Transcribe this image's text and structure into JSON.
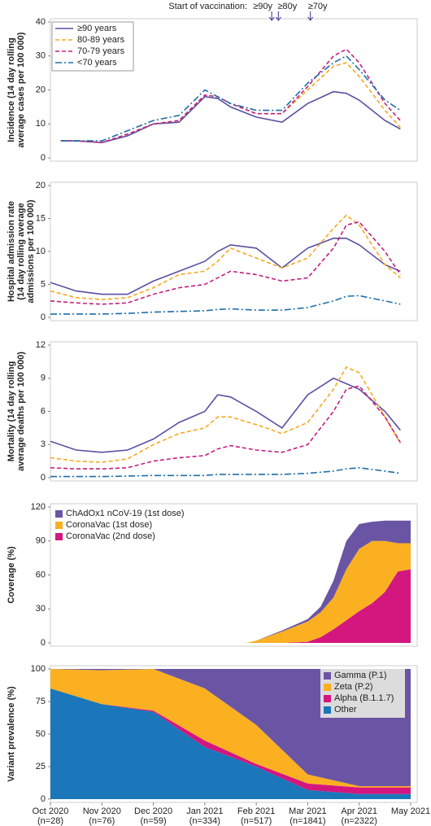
{
  "chart_data": [
    {
      "type": "line",
      "annotations": {
        "text": "Start of vaccination:",
        "markers": [
          {
            "label": "≥90y",
            "x": 4.3
          },
          {
            "label": "≥80y",
            "x": 4.43
          },
          {
            "label": "≥70y",
            "x": 5.05
          }
        ]
      },
      "ylabel": [
        "Incidence (14 day rolling",
        "average cases per 100 000)"
      ],
      "xlim": [
        0,
        7
      ],
      "ylim": [
        0,
        40
      ],
      "yticks": [
        0,
        10,
        20,
        30,
        40
      ],
      "legend": "upper left",
      "x": [
        0.2,
        0.5,
        1,
        1.5,
        2,
        2.5,
        3,
        3.25,
        3.5,
        4,
        4.5,
        5,
        5.5,
        5.75,
        6,
        6.5,
        6.8
      ],
      "series": [
        {
          "name": "≥90 years",
          "color": "#5a4fa2",
          "style": "solid",
          "values": [
            5,
            5,
            4.5,
            6.5,
            10,
            10.5,
            18,
            17.5,
            15,
            12,
            10.5,
            16,
            19.5,
            19,
            17,
            11,
            8.5
          ]
        },
        {
          "name": "80-89 years",
          "color": "#f7a823",
          "style": "dashed",
          "values": [
            5,
            5,
            4.5,
            7,
            10,
            11,
            18.5,
            18,
            16,
            13,
            13,
            20,
            27,
            28,
            24,
            14,
            9
          ]
        },
        {
          "name": "70-79 years",
          "color": "#c41e7f",
          "style": "dashed",
          "values": [
            5,
            5,
            4.5,
            7,
            10,
            11,
            18.5,
            18,
            16,
            13,
            13,
            21,
            30,
            32,
            28,
            16,
            11
          ]
        },
        {
          "name": "<70 years",
          "color": "#1f6ea8",
          "style": "dashdot",
          "values": [
            5,
            5,
            5,
            8,
            11,
            12.5,
            20,
            18,
            16,
            14,
            14,
            22,
            28,
            30,
            26,
            17,
            14
          ]
        }
      ]
    },
    {
      "type": "line",
      "ylabel": [
        "Hospital admission rate",
        "(14 day rolling average",
        "admissions per 100 000)"
      ],
      "xlim": [
        0,
        7
      ],
      "ylim": [
        0,
        20
      ],
      "yticks": [
        0,
        5,
        10,
        15,
        20
      ],
      "x": [
        0,
        0.5,
        1,
        1.5,
        2,
        2.5,
        3,
        3.25,
        3.5,
        4,
        4.5,
        5,
        5.5,
        5.75,
        6,
        6.5,
        6.8
      ],
      "series": [
        {
          "name": "≥90 years",
          "color": "#5a4fa2",
          "style": "solid",
          "values": [
            5.3,
            4,
            3.5,
            3.5,
            5.5,
            7,
            8.5,
            10,
            11,
            10.5,
            7.5,
            10.5,
            12,
            12,
            11,
            8,
            7
          ]
        },
        {
          "name": "80-89 years",
          "color": "#f7a823",
          "style": "dashed",
          "values": [
            4,
            3,
            2.7,
            3,
            4.5,
            6.5,
            7,
            8.5,
            10.5,
            9,
            7.5,
            9,
            13.5,
            15.5,
            14,
            8,
            6
          ]
        },
        {
          "name": "70-79 years",
          "color": "#c41e7f",
          "style": "dashed",
          "values": [
            2.5,
            2.2,
            2,
            2.2,
            3.5,
            4.5,
            5,
            6,
            7,
            6.5,
            5.5,
            6,
            10.5,
            14,
            14.5,
            10,
            6.5
          ]
        },
        {
          "name": "<70 years",
          "color": "#1f6ea8",
          "style": "dashdot",
          "values": [
            0.5,
            0.5,
            0.5,
            0.6,
            0.8,
            0.9,
            1,
            1.2,
            1.3,
            1.1,
            1.1,
            1.5,
            2.5,
            3.2,
            3.3,
            2.5,
            2
          ]
        }
      ]
    },
    {
      "type": "line",
      "ylabel": [
        "Mortality (14 day rolling",
        "average deaths per 100 000)"
      ],
      "xlim": [
        0,
        7
      ],
      "ylim": [
        0,
        12
      ],
      "yticks": [
        0,
        3,
        6,
        9,
        12
      ],
      "x": [
        0,
        0.5,
        1,
        1.5,
        2,
        2.5,
        3,
        3.25,
        3.5,
        4,
        4.5,
        5,
        5.5,
        5.75,
        6,
        6.5,
        6.8
      ],
      "series": [
        {
          "name": "≥90 years",
          "color": "#5a4fa2",
          "style": "solid",
          "values": [
            3.3,
            2.5,
            2.3,
            2.5,
            3.5,
            5,
            6,
            7.5,
            7.3,
            6,
            4.5,
            7.5,
            9,
            8.5,
            8,
            6,
            4.3
          ]
        },
        {
          "name": "80-89 years",
          "color": "#f7a823",
          "style": "dashed",
          "values": [
            1.8,
            1.5,
            1.4,
            1.7,
            3,
            4,
            4.5,
            5.5,
            5.5,
            4.8,
            4,
            5,
            8,
            10,
            9.5,
            5.5,
            3.1
          ]
        },
        {
          "name": "70-79 years",
          "color": "#c41e7f",
          "style": "dashed",
          "values": [
            0.9,
            0.8,
            0.8,
            0.9,
            1.5,
            1.8,
            2,
            2.6,
            2.9,
            2.5,
            2.3,
            3,
            6,
            8,
            8.3,
            5.5,
            3.2
          ]
        },
        {
          "name": "<70 years",
          "color": "#1f6ea8",
          "style": "dashdot",
          "values": [
            0.1,
            0.1,
            0.1,
            0.15,
            0.2,
            0.2,
            0.2,
            0.3,
            0.3,
            0.3,
            0.3,
            0.4,
            0.6,
            0.8,
            0.9,
            0.6,
            0.4
          ]
        }
      ]
    },
    {
      "type": "area",
      "ylabel": [
        "Coverage (%)"
      ],
      "xlim": [
        0,
        7
      ],
      "ylim": [
        0,
        120
      ],
      "yticks": [
        0,
        30,
        60,
        90,
        120
      ],
      "legend": "upper left",
      "x": [
        3.8,
        4,
        4.5,
        5,
        5.25,
        5.5,
        5.75,
        6,
        6.25,
        6.5,
        6.75,
        7
      ],
      "series": [
        {
          "name": "CoronaVac (2nd dose)",
          "color": "#d4167f",
          "values": [
            0,
            0,
            0,
            1,
            5,
            12,
            20,
            28,
            35,
            45,
            63,
            65
          ]
        },
        {
          "name": "CoronaVac (1st dose)",
          "color": "#fbb022",
          "values": [
            0,
            2,
            10,
            18,
            22,
            28,
            45,
            55,
            55,
            45,
            25,
            23
          ]
        },
        {
          "name": "ChAdOx1 nCoV-19 (1st dose)",
          "color": "#6a55a5",
          "values": [
            0,
            0,
            1,
            2,
            5,
            15,
            25,
            22,
            17,
            18,
            20,
            20
          ]
        }
      ]
    },
    {
      "type": "area",
      "ylabel": [
        "Variant prevalence (%)"
      ],
      "xlim": [
        0,
        7
      ],
      "ylim": [
        0,
        100
      ],
      "yticks": [
        0,
        25,
        50,
        75,
        100
      ],
      "legend": "upper right",
      "xticks": [
        {
          "value": 0,
          "label": "Oct 2020"
        },
        {
          "value": 1,
          "label": "Nov 2020"
        },
        {
          "value": 2,
          "label": "Dec 2020"
        },
        {
          "value": 3,
          "label": "Jan 2021"
        },
        {
          "value": 4,
          "label": "Feb 2021"
        },
        {
          "value": 5,
          "label": "Mar 2021"
        },
        {
          "value": 6,
          "label": "Apr 2021"
        },
        {
          "value": 7,
          "label": "May 2021"
        }
      ],
      "xtick_counts": [
        "(n=28)",
        "(n=76)",
        "(n=59)",
        "(n=334)",
        "(n=517)",
        "(n=1841)",
        "(n=2322)",
        null
      ],
      "x": [
        0,
        1,
        2,
        3,
        4,
        5,
        6,
        7
      ],
      "series": [
        {
          "name": "Other",
          "color": "#1b77b9",
          "values": [
            85,
            73,
            67,
            40,
            25,
            7,
            4,
            4
          ]
        },
        {
          "name": "Alpha (B.1.1.7)",
          "color": "#d4167f",
          "values": [
            0,
            0,
            1,
            5,
            2,
            5,
            5,
            5
          ]
        },
        {
          "name": "Zeta (P.2)",
          "color": "#fbb022",
          "values": [
            15,
            26,
            32,
            40,
            30,
            7,
            1,
            1
          ]
        },
        {
          "name": "Gamma (P.1)",
          "color": "#6a55a5",
          "values": [
            0,
            1,
            0,
            15,
            43,
            81,
            90,
            90
          ]
        }
      ]
    }
  ]
}
